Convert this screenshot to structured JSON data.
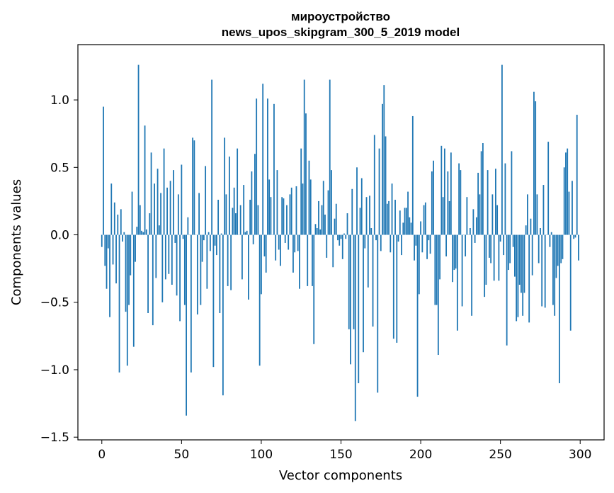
{
  "chart_data": {
    "type": "bar",
    "title_lines": [
      "мироустройство",
      "news_upos_skipgram_300_5_2019 model"
    ],
    "xlabel": "Vector components",
    "ylabel": "Components values",
    "xlim": [
      -15,
      315
    ],
    "ylim": [
      -1.52,
      1.41
    ],
    "xticks": [
      0,
      50,
      100,
      150,
      200,
      250,
      300
    ],
    "xtick_labels": [
      "0",
      "50",
      "100",
      "150",
      "200",
      "250",
      "300"
    ],
    "yticks": [
      -1.5,
      -1.0,
      -0.5,
      0.0,
      0.5,
      1.0
    ],
    "ytick_labels": [
      "−1.5",
      "−1.0",
      "−0.5",
      "0.0",
      "0.5",
      "1.0"
    ],
    "bar_color": "#1f77b4",
    "x": [
      0,
      1,
      2,
      3,
      4,
      5,
      6,
      7,
      8,
      9,
      10,
      11,
      12,
      13,
      14,
      15,
      16,
      17,
      18,
      19,
      20,
      21,
      22,
      23,
      24,
      25,
      26,
      27,
      28,
      29,
      30,
      31,
      32,
      33,
      34,
      35,
      36,
      37,
      38,
      39,
      40,
      41,
      42,
      43,
      44,
      45,
      46,
      47,
      48,
      49,
      50,
      51,
      52,
      53,
      54,
      55,
      56,
      57,
      58,
      59,
      60,
      61,
      62,
      63,
      64,
      65,
      66,
      67,
      68,
      69,
      70,
      71,
      72,
      73,
      74,
      75,
      76,
      77,
      78,
      79,
      80,
      81,
      82,
      83,
      84,
      85,
      86,
      87,
      88,
      89,
      90,
      91,
      92,
      93,
      94,
      95,
      96,
      97,
      98,
      99,
      100,
      101,
      102,
      103,
      104,
      105,
      106,
      107,
      108,
      109,
      110,
      111,
      112,
      113,
      114,
      115,
      116,
      117,
      118,
      119,
      120,
      121,
      122,
      123,
      124,
      125,
      126,
      127,
      128,
      129,
      130,
      131,
      132,
      133,
      134,
      135,
      136,
      137,
      138,
      139,
      140,
      141,
      142,
      143,
      144,
      145,
      146,
      147,
      148,
      149,
      150,
      151,
      152,
      153,
      154,
      155,
      156,
      157,
      158,
      159,
      160,
      161,
      162,
      163,
      164,
      165,
      166,
      167,
      168,
      169,
      170,
      171,
      172,
      173,
      174,
      175,
      176,
      177,
      178,
      179,
      180,
      181,
      182,
      183,
      184,
      185,
      186,
      187,
      188,
      189,
      190,
      191,
      192,
      193,
      194,
      195,
      196,
      197,
      198,
      199,
      200,
      201,
      202,
      203,
      204,
      205,
      206,
      207,
      208,
      209,
      210,
      211,
      212,
      213,
      214,
      215,
      216,
      217,
      218,
      219,
      220,
      221,
      222,
      223,
      224,
      225,
      226,
      227,
      228,
      229,
      230,
      231,
      232,
      233,
      234,
      235,
      236,
      237,
      238,
      239,
      240,
      241,
      242,
      243,
      244,
      245,
      246,
      247,
      248,
      249,
      250,
      251,
      252,
      253,
      254,
      255,
      256,
      257,
      258,
      259,
      260,
      261,
      262,
      263,
      264,
      265,
      266,
      267,
      268,
      269,
      270,
      271,
      272,
      273,
      274,
      275,
      276,
      277,
      278,
      279,
      280,
      281,
      282,
      283,
      284,
      285,
      286,
      287,
      288,
      289,
      290,
      291,
      292,
      293,
      294,
      295,
      296,
      297,
      298,
      299
    ],
    "values": [
      -0.09,
      0.95,
      -0.23,
      -0.4,
      -0.1,
      -0.61,
      0.38,
      -0.22,
      0.24,
      -0.36,
      0.15,
      -1.02,
      0.19,
      -0.05,
      0.02,
      -0.57,
      -0.97,
      -0.52,
      -0.3,
      0.32,
      -0.83,
      -0.2,
      0.06,
      1.26,
      0.22,
      0.03,
      0.02,
      0.81,
      0.04,
      -0.58,
      0.16,
      0.61,
      -0.67,
      0.38,
      -0.32,
      0.49,
      0.07,
      0.31,
      -0.5,
      0.64,
      -0.33,
      0.35,
      -0.29,
      0.4,
      -0.37,
      0.48,
      -0.06,
      -0.45,
      0.3,
      -0.64,
      0.52,
      -0.03,
      -0.52,
      -1.34,
      0.13,
      0.0,
      -1.02,
      0.72,
      0.7,
      0.0,
      -0.59,
      0.31,
      -0.52,
      -0.2,
      -0.04,
      0.51,
      -0.4,
      0.02,
      -0.12,
      1.15,
      -0.98,
      -0.08,
      -0.15,
      0.26,
      -0.58,
      0.01,
      -1.19,
      0.72,
      0.3,
      -0.38,
      0.58,
      -0.41,
      0.2,
      0.35,
      0.16,
      0.64,
      0.0,
      0.22,
      -0.33,
      0.37,
      0.02,
      0.03,
      -0.48,
      0.26,
      0.47,
      -0.07,
      0.6,
      1.01,
      0.22,
      -0.97,
      -0.44,
      1.12,
      -0.16,
      -0.28,
      1.01,
      0.41,
      0.28,
      0.0,
      0.97,
      -0.19,
      0.48,
      -0.11,
      -0.23,
      0.28,
      0.27,
      -0.06,
      0.22,
      -0.11,
      0.3,
      0.35,
      -0.28,
      -0.13,
      0.36,
      -0.12,
      -0.4,
      0.64,
      0.38,
      1.15,
      0.9,
      -0.38,
      0.55,
      0.41,
      -0.38,
      -0.81,
      0.08,
      0.05,
      0.25,
      0.04,
      0.22,
      0.4,
      0.15,
      -0.17,
      0.33,
      1.15,
      0.48,
      -0.24,
      0.12,
      0.23,
      -0.04,
      -0.08,
      -0.03,
      -0.18,
      0.01,
      -0.03,
      0.16,
      -0.7,
      -0.96,
      0.34,
      -0.7,
      -1.38,
      0.5,
      -1.1,
      0.2,
      0.42,
      -0.87,
      -0.1,
      0.28,
      -0.39,
      0.29,
      0.05,
      -0.68,
      0.74,
      -0.04,
      -1.17,
      0.64,
      -0.12,
      0.97,
      1.11,
      0.73,
      0.23,
      0.25,
      -0.13,
      0.38,
      -0.77,
      0.26,
      -0.8,
      -0.05,
      0.18,
      -0.15,
      0.09,
      0.2,
      0.2,
      0.32,
      0.13,
      0.09,
      0.88,
      -0.19,
      -0.08,
      -1.2,
      -0.44,
      0.1,
      -0.13,
      0.22,
      0.24,
      -0.18,
      -0.04,
      -0.14,
      0.47,
      0.55,
      -0.52,
      -0.52,
      -0.89,
      -0.33,
      0.66,
      0.28,
      0.64,
      -0.16,
      0.47,
      0.25,
      0.61,
      -0.35,
      -0.26,
      -0.25,
      -0.71,
      0.53,
      0.48,
      -0.53,
      0.0,
      -0.16,
      0.28,
      0.0,
      0.05,
      -0.6,
      0.19,
      -0.06,
      0.13,
      0.46,
      0.3,
      0.62,
      0.68,
      -0.46,
      -0.37,
      0.48,
      -0.17,
      -0.21,
      0.3,
      -0.34,
      0.49,
      0.22,
      -0.34,
      -0.05,
      1.26,
      -0.15,
      0.53,
      -0.82,
      -0.26,
      -0.21,
      0.62,
      -0.09,
      -0.31,
      -0.64,
      -0.61,
      -0.37,
      -0.43,
      -0.6,
      -0.43,
      0.07,
      0.3,
      -0.65,
      0.12,
      -0.3,
      1.06,
      0.99,
      0.3,
      -0.21,
      0.05,
      -0.53,
      0.37,
      -0.54,
      0.0,
      0.69,
      -0.09,
      0.02,
      -0.52,
      -0.6,
      -0.32,
      -0.23,
      -1.1,
      -0.21,
      -0.18,
      0.5,
      0.61,
      0.64,
      0.32,
      -0.71,
      0.4,
      -0.03,
      -0.02,
      0.89,
      -0.19
    ]
  }
}
